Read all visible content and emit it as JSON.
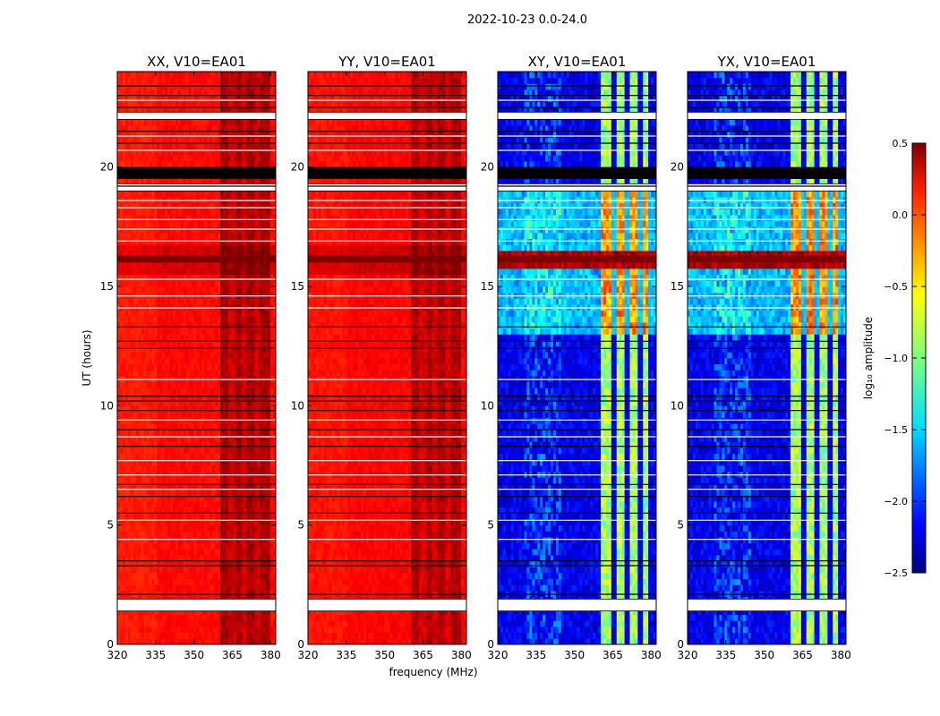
{
  "figure": {
    "suptitle": "2022-10-23 0.0-24.0",
    "xlabel": "frequency (MHz)",
    "ylabel": "UT (hours)"
  },
  "chart_data": {
    "type": "heatmap",
    "xlim": [
      320,
      382
    ],
    "ylim": [
      0,
      24
    ],
    "xticks": [
      320,
      335,
      350,
      365,
      380
    ],
    "yticks": [
      0,
      5,
      10,
      15,
      20
    ],
    "panels": [
      {
        "title": "XX, V10=EA01",
        "base": 0.1,
        "band": 0.38,
        "kind": "auto"
      },
      {
        "title": "YY, V10=EA01",
        "base": 0.12,
        "band": 0.36,
        "kind": "auto"
      },
      {
        "title": "XY, V10=EA01",
        "base": -2.35,
        "band": -0.9,
        "kind": "cross"
      },
      {
        "title": "YX, V10=EA01",
        "base": -2.35,
        "band": -0.9,
        "kind": "cross"
      }
    ],
    "rfi_band_mhz": [
      360,
      380
    ],
    "white_gaps_ut": [
      [
        1.4,
        1.9
      ],
      [
        19.0,
        19.3
      ],
      [
        22.0,
        22.3
      ]
    ],
    "flagged_hours_ut": [
      [
        19.5,
        20.0
      ],
      [
        16.0,
        16.3
      ]
    ],
    "colorbar": {
      "label": "log₁₀ amplitude",
      "range": [
        -2.5,
        0.5
      ],
      "ticks": [
        "0.5",
        "0.0",
        "−0.5",
        "−1.0",
        "−1.5",
        "−2.0",
        "−2.5"
      ],
      "colormap": "jet"
    }
  }
}
